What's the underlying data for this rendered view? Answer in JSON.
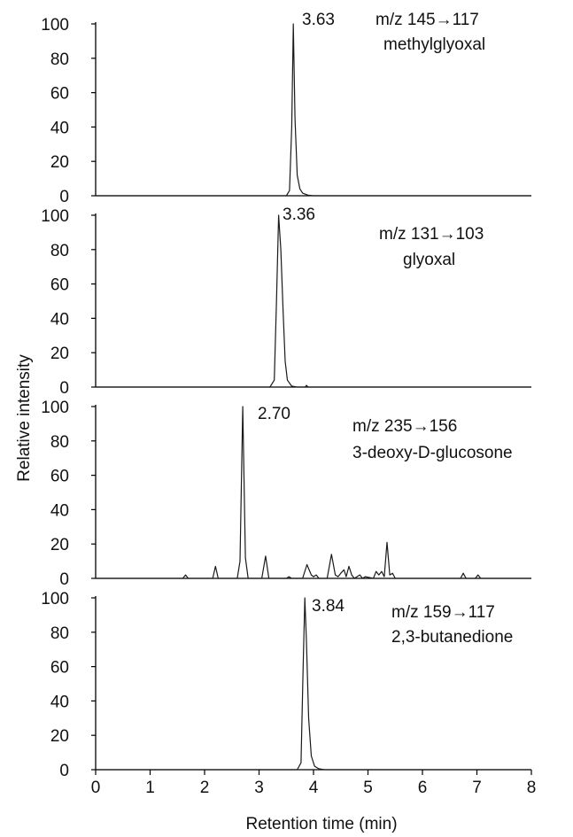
{
  "chart_data": {
    "type": "line",
    "ylabel": "Relative intensity",
    "xlabel": "Retention time (min)",
    "xlim": [
      0,
      8
    ],
    "x_ticks": [
      "0",
      "1",
      "2",
      "3",
      "4",
      "5",
      "6",
      "7",
      "8"
    ],
    "y_ticks": [
      "0",
      "20",
      "40",
      "60",
      "80",
      "100"
    ],
    "ylim": [
      0,
      100
    ],
    "grid": false,
    "panels": [
      {
        "transition": "m/z 145→117",
        "compound": "methylglyoxal",
        "peak_label": "3.63",
        "series": [
          {
            "x": [
              0,
              3.5,
              3.56,
              3.6,
              3.63,
              3.66,
              3.7,
              3.75,
              3.8,
              3.9,
              4.0,
              8
            ],
            "values": [
              0,
              0,
              3,
              40,
              100,
              45,
              12,
              4,
              1.5,
              0.3,
              0,
              0
            ]
          }
        ]
      },
      {
        "transition": "m/z 131→103",
        "compound": "glyoxal",
        "peak_label": "3.36",
        "series": [
          {
            "x": [
              0,
              3.2,
              3.28,
              3.32,
              3.36,
              3.4,
              3.44,
              3.48,
              3.52,
              3.6,
              3.7,
              3.85,
              3.87,
              3.9,
              8
            ],
            "values": [
              0,
              0,
              4,
              50,
              100,
              80,
              45,
              15,
              4,
              0.5,
              0,
              0,
              1,
              0,
              0
            ]
          }
        ]
      },
      {
        "transition": "m/z 235→156",
        "compound": "3-deoxy-D-glucosone",
        "peak_label": "2.70",
        "series": [
          {
            "x": [
              0,
              1.6,
              1.65,
              1.7,
              2.15,
              2.2,
              2.25,
              2.6,
              2.65,
              2.7,
              2.75,
              2.8,
              3.05,
              3.12,
              3.18,
              3.5,
              3.55,
              3.6,
              3.8,
              3.88,
              3.96,
              4.0,
              4.05,
              4.1,
              4.25,
              4.33,
              4.4,
              4.45,
              4.5,
              4.56,
              4.6,
              4.65,
              4.7,
              4.75,
              4.85,
              4.9,
              4.95,
              5.1,
              5.15,
              5.2,
              5.25,
              5.3,
              5.35,
              5.4,
              5.45,
              5.5,
              5.6,
              6.7,
              6.75,
              6.8,
              6.97,
              7.02,
              7.07,
              8
            ],
            "values": [
              0,
              0,
              2,
              0,
              0,
              7,
              0,
              0,
              10,
              100,
              12,
              0,
              0,
              13,
              0,
              0,
              1,
              0,
              0,
              8,
              2,
              1,
              2,
              0,
              0,
              14,
              2,
              1,
              3,
              5,
              1,
              7,
              2,
              0,
              2,
              0,
              1,
              0,
              4,
              2,
              4,
              1,
              21,
              2,
              3,
              0,
              0,
              0,
              3,
              0,
              0,
              2,
              0,
              0
            ]
          }
        ]
      },
      {
        "transition": "m/z 159→117",
        "compound": "2,3-butanedione",
        "peak_label": "3.84",
        "series": [
          {
            "x": [
              0,
              1.6,
              2.9,
              3.7,
              3.77,
              3.81,
              3.84,
              3.87,
              3.91,
              3.96,
              4.02,
              4.1,
              4.2,
              8
            ],
            "values": [
              0,
              0,
              0,
              0,
              4,
              60,
              100,
              75,
              30,
              8,
              2,
              0.5,
              0,
              0
            ]
          }
        ]
      }
    ]
  }
}
